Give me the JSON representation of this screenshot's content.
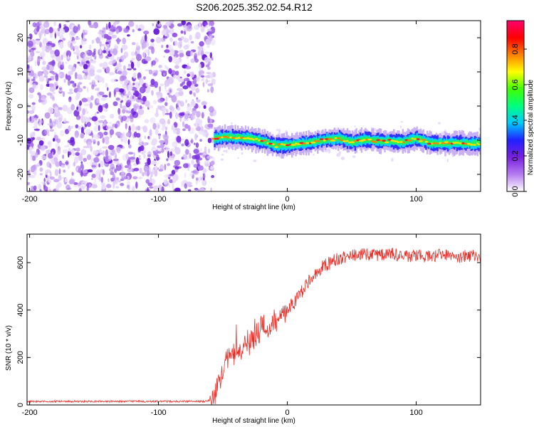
{
  "title": "S206.2025.352.02.54.R12",
  "chart_data": [
    {
      "type": "heatmap",
      "name": "spectrogram",
      "xlabel": "Height of straight line (km)",
      "ylabel": "Frequency (Hz)",
      "xlim": [
        -202,
        150
      ],
      "ylim": [
        -25,
        25
      ],
      "x_ticks": [
        -200,
        -100,
        0,
        100
      ],
      "y_ticks": [
        -20,
        -10,
        0,
        10,
        20
      ],
      "noise_region": [
        -202,
        -57
      ],
      "signal_start": -57,
      "signal_frequency_hz": -10.5,
      "signal_track": [
        {
          "x": -57,
          "f": -9.5
        },
        {
          "x": -50,
          "f": -9.0
        },
        {
          "x": -40,
          "f": -9.2
        },
        {
          "x": -30,
          "f": -9.5
        },
        {
          "x": -20,
          "f": -10.2
        },
        {
          "x": -10,
          "f": -11.5
        },
        {
          "x": 0,
          "f": -11.5
        },
        {
          "x": 10,
          "f": -11.0
        },
        {
          "x": 20,
          "f": -10.5
        },
        {
          "x": 30,
          "f": -9.8
        },
        {
          "x": 40,
          "f": -9.5
        },
        {
          "x": 50,
          "f": -10.5
        },
        {
          "x": 60,
          "f": -9.8
        },
        {
          "x": 70,
          "f": -10.2
        },
        {
          "x": 80,
          "f": -10.3
        },
        {
          "x": 90,
          "f": -10.5
        },
        {
          "x": 100,
          "f": -9.5
        },
        {
          "x": 110,
          "f": -10.8
        },
        {
          "x": 120,
          "f": -11.0
        },
        {
          "x": 130,
          "f": -10.8
        },
        {
          "x": 140,
          "f": -11.0
        },
        {
          "x": 150,
          "f": -11.0
        }
      ],
      "colorbar": {
        "label": "Normalized spectral amplitude",
        "range": [
          0,
          0.96
        ],
        "ticks": [
          0.0,
          0.2,
          0.4,
          0.6,
          0.8
        ],
        "tick_labels": [
          "0.0",
          "0.2",
          "0.4",
          "0.6",
          "0.8"
        ],
        "colors": [
          "#ffffff",
          "#b57cf0",
          "#7a1fe0",
          "#2020ff",
          "#00c8ff",
          "#00ff80",
          "#40ff00",
          "#ffff00",
          "#ff8000",
          "#ff0000",
          "#ff0070"
        ]
      }
    },
    {
      "type": "line",
      "name": "snr",
      "xlabel": "Height of straight line (km)",
      "ylabel": "SNR (10 * v/v)",
      "xlim": [
        -202,
        150
      ],
      "ylim": [
        0,
        720
      ],
      "x_ticks": [
        -200,
        -100,
        0,
        100
      ],
      "y_ticks": [
        0,
        200,
        400,
        600
      ],
      "series": [
        {
          "name": "SNR",
          "color": "#e8302a",
          "x": [
            -202,
            -180,
            -160,
            -140,
            -120,
            -100,
            -80,
            -65,
            -60,
            -57,
            -50,
            -45,
            -40,
            -35,
            -30,
            -25,
            -20,
            -15,
            -10,
            -5,
            0,
            5,
            10,
            15,
            20,
            25,
            30,
            35,
            40,
            45,
            50,
            60,
            70,
            80,
            90,
            100,
            110,
            120,
            130,
            140,
            150
          ],
          "values": [
            15,
            15,
            15,
            15,
            15,
            15,
            15,
            15,
            20,
            30,
            150,
            210,
            220,
            240,
            270,
            290,
            330,
            320,
            350,
            370,
            400,
            430,
            470,
            510,
            540,
            570,
            590,
            605,
            615,
            625,
            630,
            635,
            630,
            640,
            625,
            630,
            625,
            635,
            620,
            630,
            625
          ]
        }
      ]
    }
  ]
}
